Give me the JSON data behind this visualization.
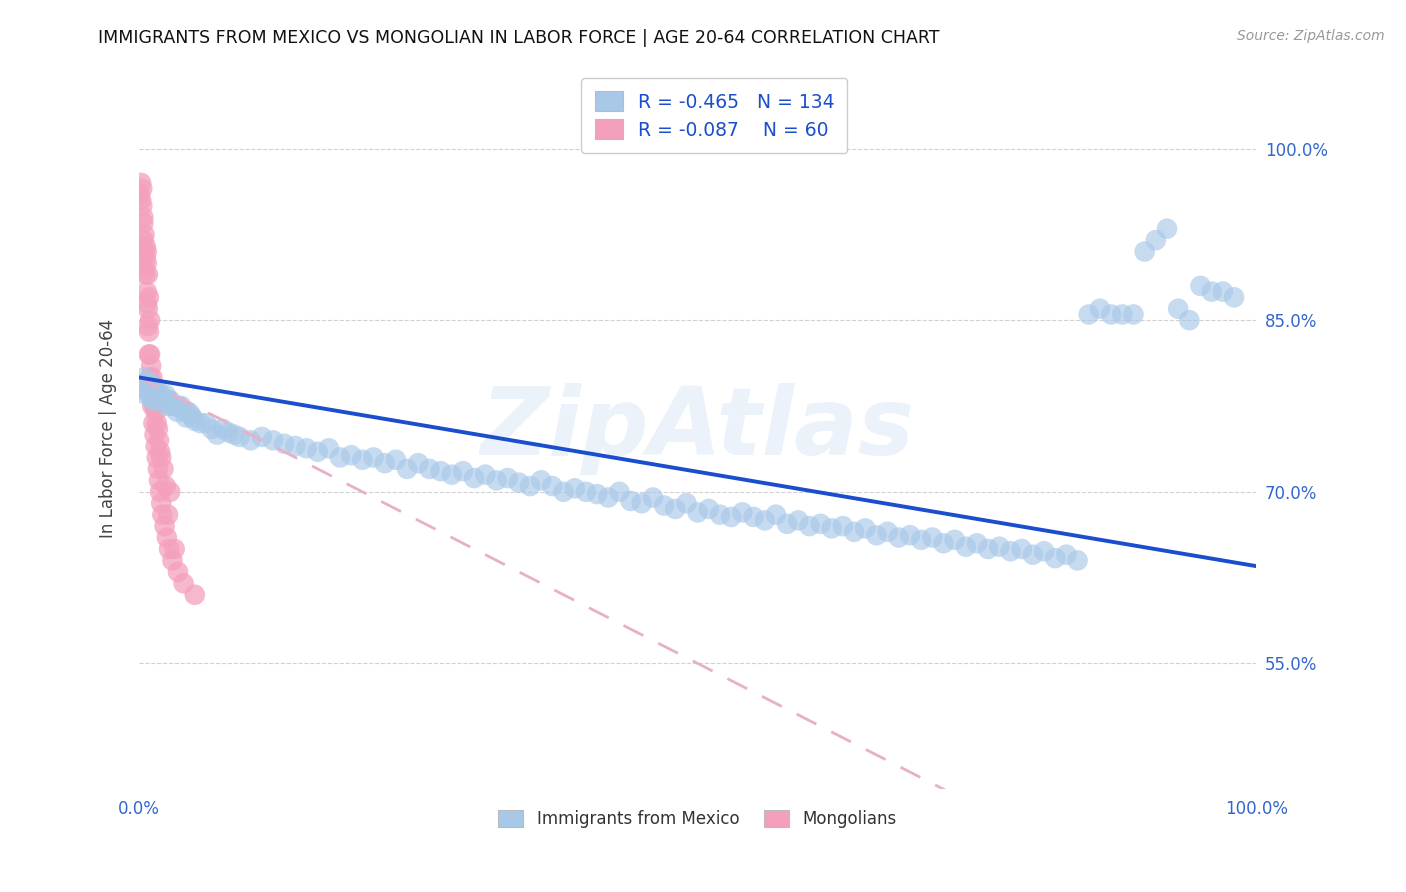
{
  "title": "IMMIGRANTS FROM MEXICO VS MONGOLIAN IN LABOR FORCE | AGE 20-64 CORRELATION CHART",
  "source": "Source: ZipAtlas.com",
  "ylabel": "In Labor Force | Age 20-64",
  "ytick_labels": [
    "100.0%",
    "85.0%",
    "70.0%",
    "55.0%"
  ],
  "ytick_values": [
    1.0,
    0.85,
    0.7,
    0.55
  ],
  "xlim": [
    0.0,
    1.0
  ],
  "ylim": [
    0.44,
    1.07
  ],
  "r_mexico": "-0.465",
  "n_mexico": "134",
  "r_mongolian": "-0.087",
  "n_mongolian": "60",
  "blue_scatter_color": "#a8c8e8",
  "pink_scatter_color": "#f4a0bc",
  "blue_line_color": "#1a4ecc",
  "pink_line_color": "#e8b0c8",
  "axis_label_color": "#3366cc",
  "title_color": "#111111",
  "watermark_text": "ZipAtlas",
  "watermark_color": "#dde8f5",
  "grid_color": "#cccccc",
  "bg_color": "#ffffff",
  "mexico_x": [
    0.003,
    0.004,
    0.005,
    0.006,
    0.007,
    0.008,
    0.009,
    0.01,
    0.011,
    0.012,
    0.013,
    0.014,
    0.015,
    0.016,
    0.017,
    0.018,
    0.019,
    0.02,
    0.021,
    0.022,
    0.023,
    0.024,
    0.025,
    0.026,
    0.027,
    0.028,
    0.03,
    0.032,
    0.034,
    0.036,
    0.038,
    0.04,
    0.042,
    0.044,
    0.046,
    0.048,
    0.05,
    0.055,
    0.06,
    0.065,
    0.07,
    0.075,
    0.08,
    0.085,
    0.09,
    0.1,
    0.11,
    0.12,
    0.13,
    0.14,
    0.15,
    0.16,
    0.17,
    0.18,
    0.19,
    0.2,
    0.21,
    0.22,
    0.23,
    0.24,
    0.25,
    0.26,
    0.27,
    0.28,
    0.29,
    0.3,
    0.31,
    0.32,
    0.33,
    0.34,
    0.35,
    0.36,
    0.37,
    0.38,
    0.39,
    0.4,
    0.41,
    0.42,
    0.43,
    0.44,
    0.45,
    0.46,
    0.47,
    0.48,
    0.49,
    0.5,
    0.51,
    0.52,
    0.53,
    0.54,
    0.55,
    0.56,
    0.57,
    0.58,
    0.59,
    0.6,
    0.61,
    0.62,
    0.63,
    0.64,
    0.65,
    0.66,
    0.67,
    0.68,
    0.69,
    0.7,
    0.71,
    0.72,
    0.73,
    0.74,
    0.75,
    0.76,
    0.77,
    0.78,
    0.79,
    0.8,
    0.81,
    0.82,
    0.83,
    0.84,
    0.85,
    0.86,
    0.87,
    0.88,
    0.89,
    0.9,
    0.91,
    0.92,
    0.93,
    0.94,
    0.95,
    0.96,
    0.97,
    0.98
  ],
  "mexico_y": [
    0.79,
    0.795,
    0.8,
    0.785,
    0.79,
    0.795,
    0.785,
    0.785,
    0.795,
    0.78,
    0.79,
    0.78,
    0.785,
    0.79,
    0.78,
    0.785,
    0.78,
    0.785,
    0.78,
    0.78,
    0.78,
    0.785,
    0.78,
    0.775,
    0.78,
    0.78,
    0.775,
    0.775,
    0.77,
    0.775,
    0.775,
    0.77,
    0.765,
    0.77,
    0.768,
    0.765,
    0.762,
    0.76,
    0.76,
    0.755,
    0.75,
    0.755,
    0.752,
    0.75,
    0.748,
    0.745,
    0.748,
    0.745,
    0.742,
    0.74,
    0.738,
    0.735,
    0.738,
    0.73,
    0.732,
    0.728,
    0.73,
    0.725,
    0.728,
    0.72,
    0.725,
    0.72,
    0.718,
    0.715,
    0.718,
    0.712,
    0.715,
    0.71,
    0.712,
    0.708,
    0.705,
    0.71,
    0.705,
    0.7,
    0.703,
    0.7,
    0.698,
    0.695,
    0.7,
    0.692,
    0.69,
    0.695,
    0.688,
    0.685,
    0.69,
    0.682,
    0.685,
    0.68,
    0.678,
    0.682,
    0.678,
    0.675,
    0.68,
    0.672,
    0.675,
    0.67,
    0.672,
    0.668,
    0.67,
    0.665,
    0.668,
    0.662,
    0.665,
    0.66,
    0.662,
    0.658,
    0.66,
    0.655,
    0.658,
    0.652,
    0.655,
    0.65,
    0.652,
    0.648,
    0.65,
    0.645,
    0.648,
    0.642,
    0.645,
    0.64,
    0.855,
    0.86,
    0.855,
    0.855,
    0.855,
    0.91,
    0.92,
    0.93,
    0.86,
    0.85,
    0.88,
    0.875,
    0.875,
    0.87
  ],
  "mongolian_x": [
    0.001,
    0.002,
    0.002,
    0.003,
    0.003,
    0.004,
    0.004,
    0.004,
    0.005,
    0.005,
    0.005,
    0.006,
    0.006,
    0.006,
    0.007,
    0.007,
    0.007,
    0.007,
    0.008,
    0.008,
    0.008,
    0.009,
    0.009,
    0.009,
    0.01,
    0.01,
    0.01,
    0.011,
    0.011,
    0.012,
    0.012,
    0.013,
    0.013,
    0.014,
    0.014,
    0.015,
    0.015,
    0.016,
    0.016,
    0.017,
    0.017,
    0.018,
    0.018,
    0.019,
    0.019,
    0.02,
    0.02,
    0.021,
    0.022,
    0.023,
    0.024,
    0.025,
    0.026,
    0.027,
    0.028,
    0.03,
    0.032,
    0.035,
    0.04,
    0.05
  ],
  "mongolian_y": [
    0.96,
    0.97,
    0.955,
    0.965,
    0.95,
    0.94,
    0.92,
    0.935,
    0.895,
    0.91,
    0.925,
    0.89,
    0.905,
    0.915,
    0.865,
    0.875,
    0.9,
    0.91,
    0.845,
    0.86,
    0.89,
    0.82,
    0.84,
    0.87,
    0.8,
    0.82,
    0.85,
    0.79,
    0.81,
    0.775,
    0.8,
    0.76,
    0.785,
    0.75,
    0.775,
    0.74,
    0.77,
    0.73,
    0.76,
    0.72,
    0.755,
    0.71,
    0.745,
    0.7,
    0.735,
    0.69,
    0.73,
    0.68,
    0.72,
    0.67,
    0.705,
    0.66,
    0.68,
    0.65,
    0.7,
    0.64,
    0.65,
    0.63,
    0.62,
    0.61
  ]
}
